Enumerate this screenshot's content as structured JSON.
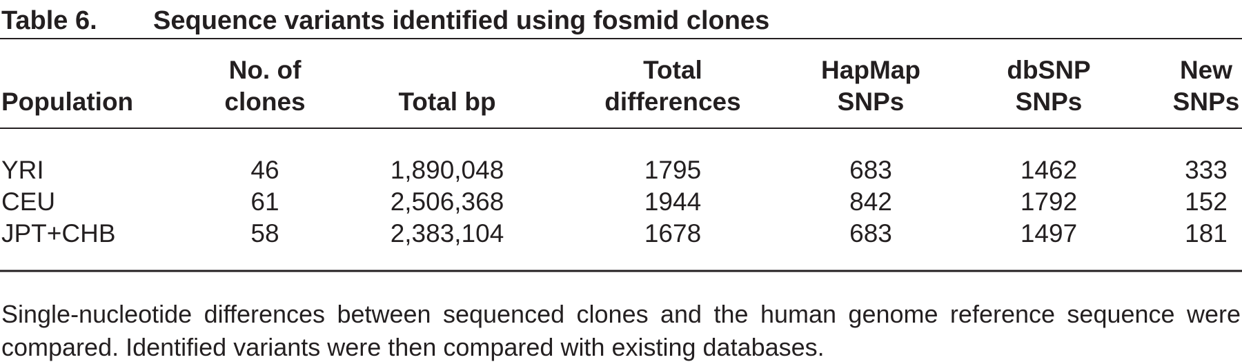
{
  "caption": {
    "label": "Table 6.",
    "title": "Sequence variants identified using fosmid clones"
  },
  "table": {
    "header": [
      [
        "Population"
      ],
      [
        "No. of",
        "clones"
      ],
      [
        "Total bp"
      ],
      [
        "Total",
        "differences"
      ],
      [
        "HapMap",
        "SNPs"
      ],
      [
        "dbSNP",
        "SNPs"
      ],
      [
        "New",
        "SNPs"
      ]
    ],
    "rows": [
      [
        "YRI",
        "46",
        "1,890,048",
        "1795",
        "683",
        "1462",
        "333"
      ],
      [
        "CEU",
        "61",
        "2,506,368",
        "1944",
        "842",
        "1792",
        "152"
      ],
      [
        "JPT+CHB",
        "58",
        "2,383,104",
        "1678",
        "683",
        "1497",
        "181"
      ]
    ]
  },
  "footnote": "Single-nucleotide differences between sequenced clones and the human genome reference sequence were compared. Identified variants were then compared with existing databases."
}
